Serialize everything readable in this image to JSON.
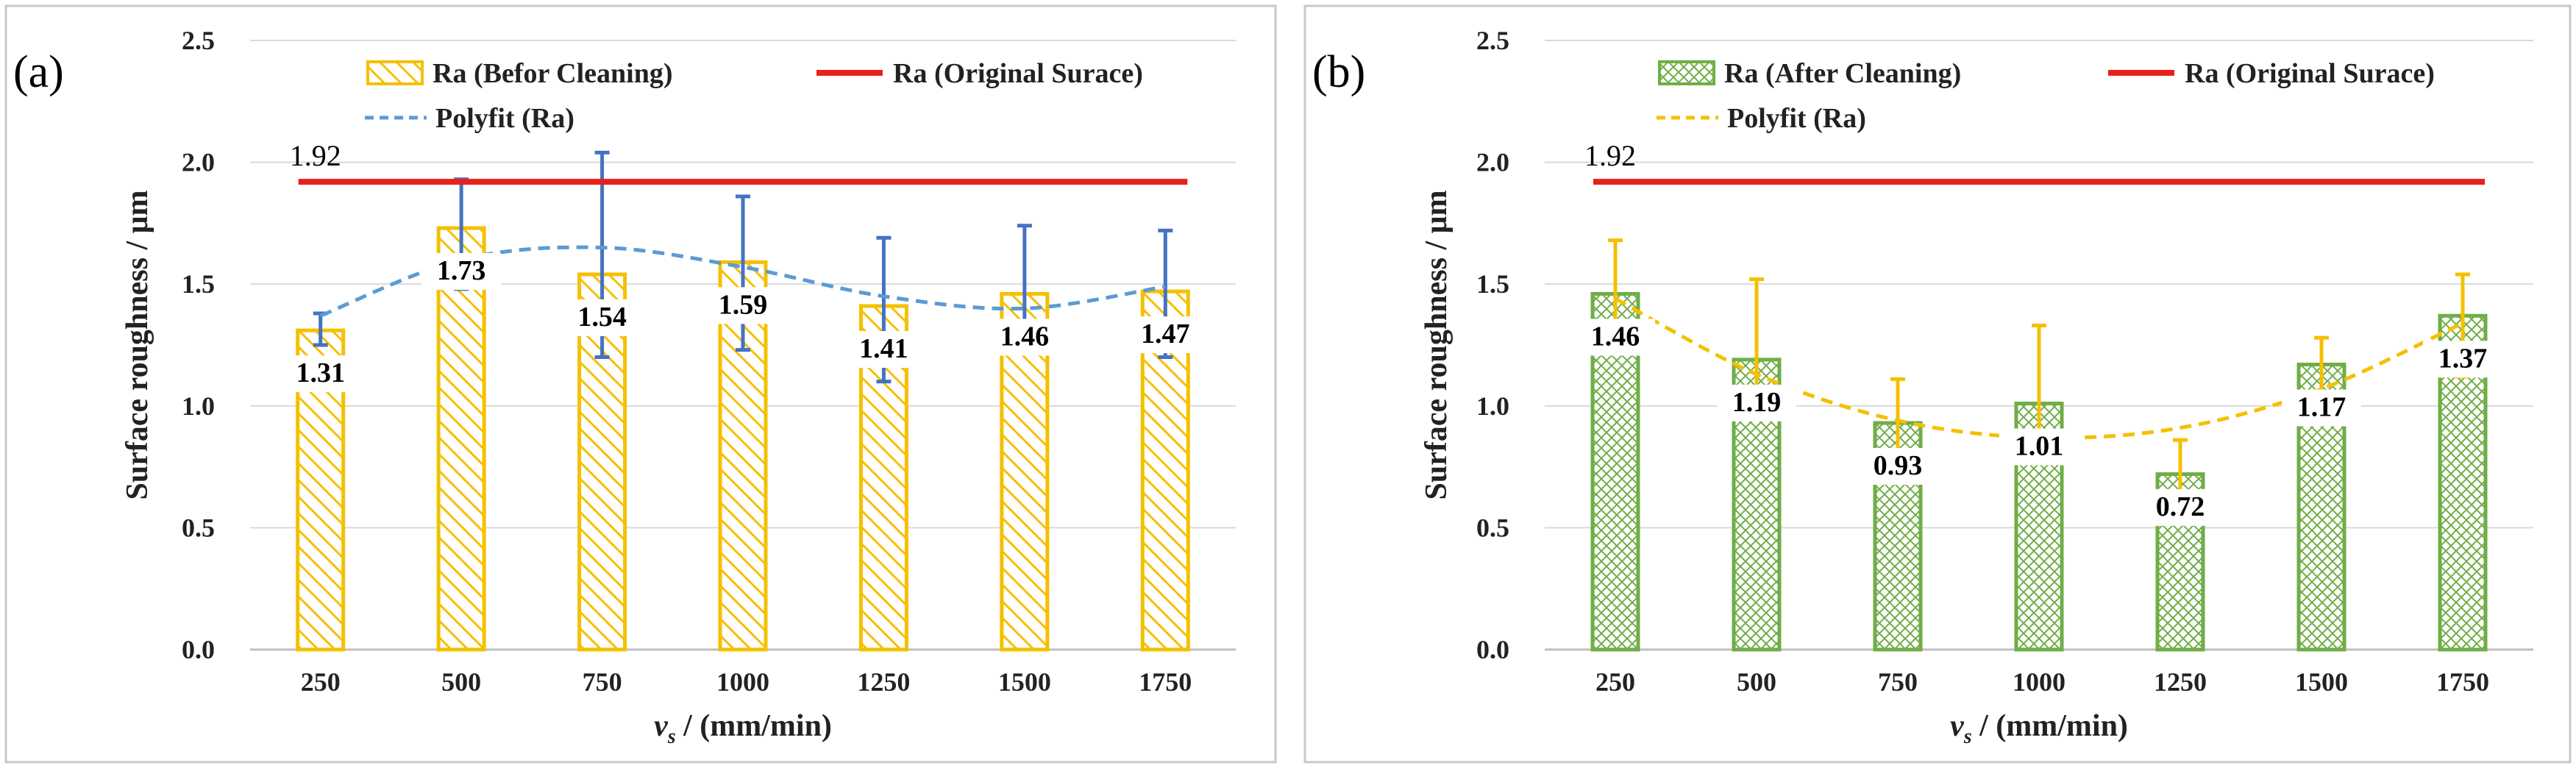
{
  "chart_data": [
    {
      "type": "bar",
      "panel_label": "(a)",
      "categories": [
        "250",
        "500",
        "750",
        "1000",
        "1250",
        "1500",
        "1750"
      ],
      "series": [
        {
          "name": "Ra (Befor Cleaning)",
          "values": [
            1.31,
            1.73,
            1.54,
            1.59,
            1.41,
            1.46,
            1.47
          ],
          "value_labels": [
            "1.31",
            "1.73",
            "1.54",
            "1.59",
            "1.41",
            "1.46",
            "1.47"
          ],
          "error_low": [
            1.25,
            1.48,
            1.2,
            1.23,
            1.1,
            1.24,
            1.2
          ],
          "error_high": [
            1.38,
            1.93,
            2.04,
            1.86,
            1.69,
            1.74,
            1.72
          ]
        }
      ],
      "reference_line": {
        "name": "Ra (Original Surace)",
        "value": 1.92,
        "label": "1.92"
      },
      "polyfit": {
        "name": "Polyfit (Ra)",
        "values": [
          1.37,
          1.6,
          1.65,
          1.57,
          1.45,
          1.4,
          1.49
        ]
      },
      "xlabel_italic": "v",
      "xlabel_sub": "s",
      "xlabel_rest": " / (mm/min)",
      "ylabel": "Surface  roughness / μm",
      "ylim": [
        0,
        2.5
      ],
      "yticks": [
        "0.0",
        "0.5",
        "1.0",
        "1.5",
        "2.0",
        "2.5"
      ],
      "colors": {
        "bar": "#F5C000",
        "reference": "#E8201A",
        "polyfit": "#5B9BD5",
        "error": "#4472C4"
      }
    },
    {
      "type": "bar",
      "panel_label": "(b)",
      "categories": [
        "250",
        "500",
        "750",
        "1000",
        "1250",
        "1500",
        "1750"
      ],
      "series": [
        {
          "name": "Ra (After Cleaning)",
          "values": [
            1.46,
            1.19,
            0.93,
            1.01,
            0.72,
            1.17,
            1.37
          ],
          "value_labels": [
            "1.46",
            "1.19",
            "0.93",
            "1.01",
            "0.72",
            "1.17",
            "1.37"
          ],
          "error_low": [
            1.26,
            0.98,
            0.8,
            0.78,
            0.55,
            1.05,
            1.12
          ],
          "error_high": [
            1.68,
            1.52,
            1.11,
            1.33,
            0.86,
            1.28,
            1.54
          ]
        }
      ],
      "reference_line": {
        "name": "Ra (Original Surace)",
        "value": 1.92,
        "label": "1.92"
      },
      "polyfit": {
        "name": "Polyfit (Ra)",
        "values": [
          1.44,
          1.13,
          0.94,
          0.87,
          0.91,
          1.07,
          1.34
        ]
      },
      "xlabel_italic": "v",
      "xlabel_sub": "s",
      "xlabel_rest": " / (mm/min)",
      "ylabel": "Surface  roughness / μm",
      "ylim": [
        0,
        2.5
      ],
      "yticks": [
        "0.0",
        "0.5",
        "1.0",
        "1.5",
        "2.0",
        "2.5"
      ],
      "colors": {
        "bar": "#70AD47",
        "reference": "#E8201A",
        "polyfit": "#F5C000",
        "error": "#F5C000"
      }
    }
  ]
}
